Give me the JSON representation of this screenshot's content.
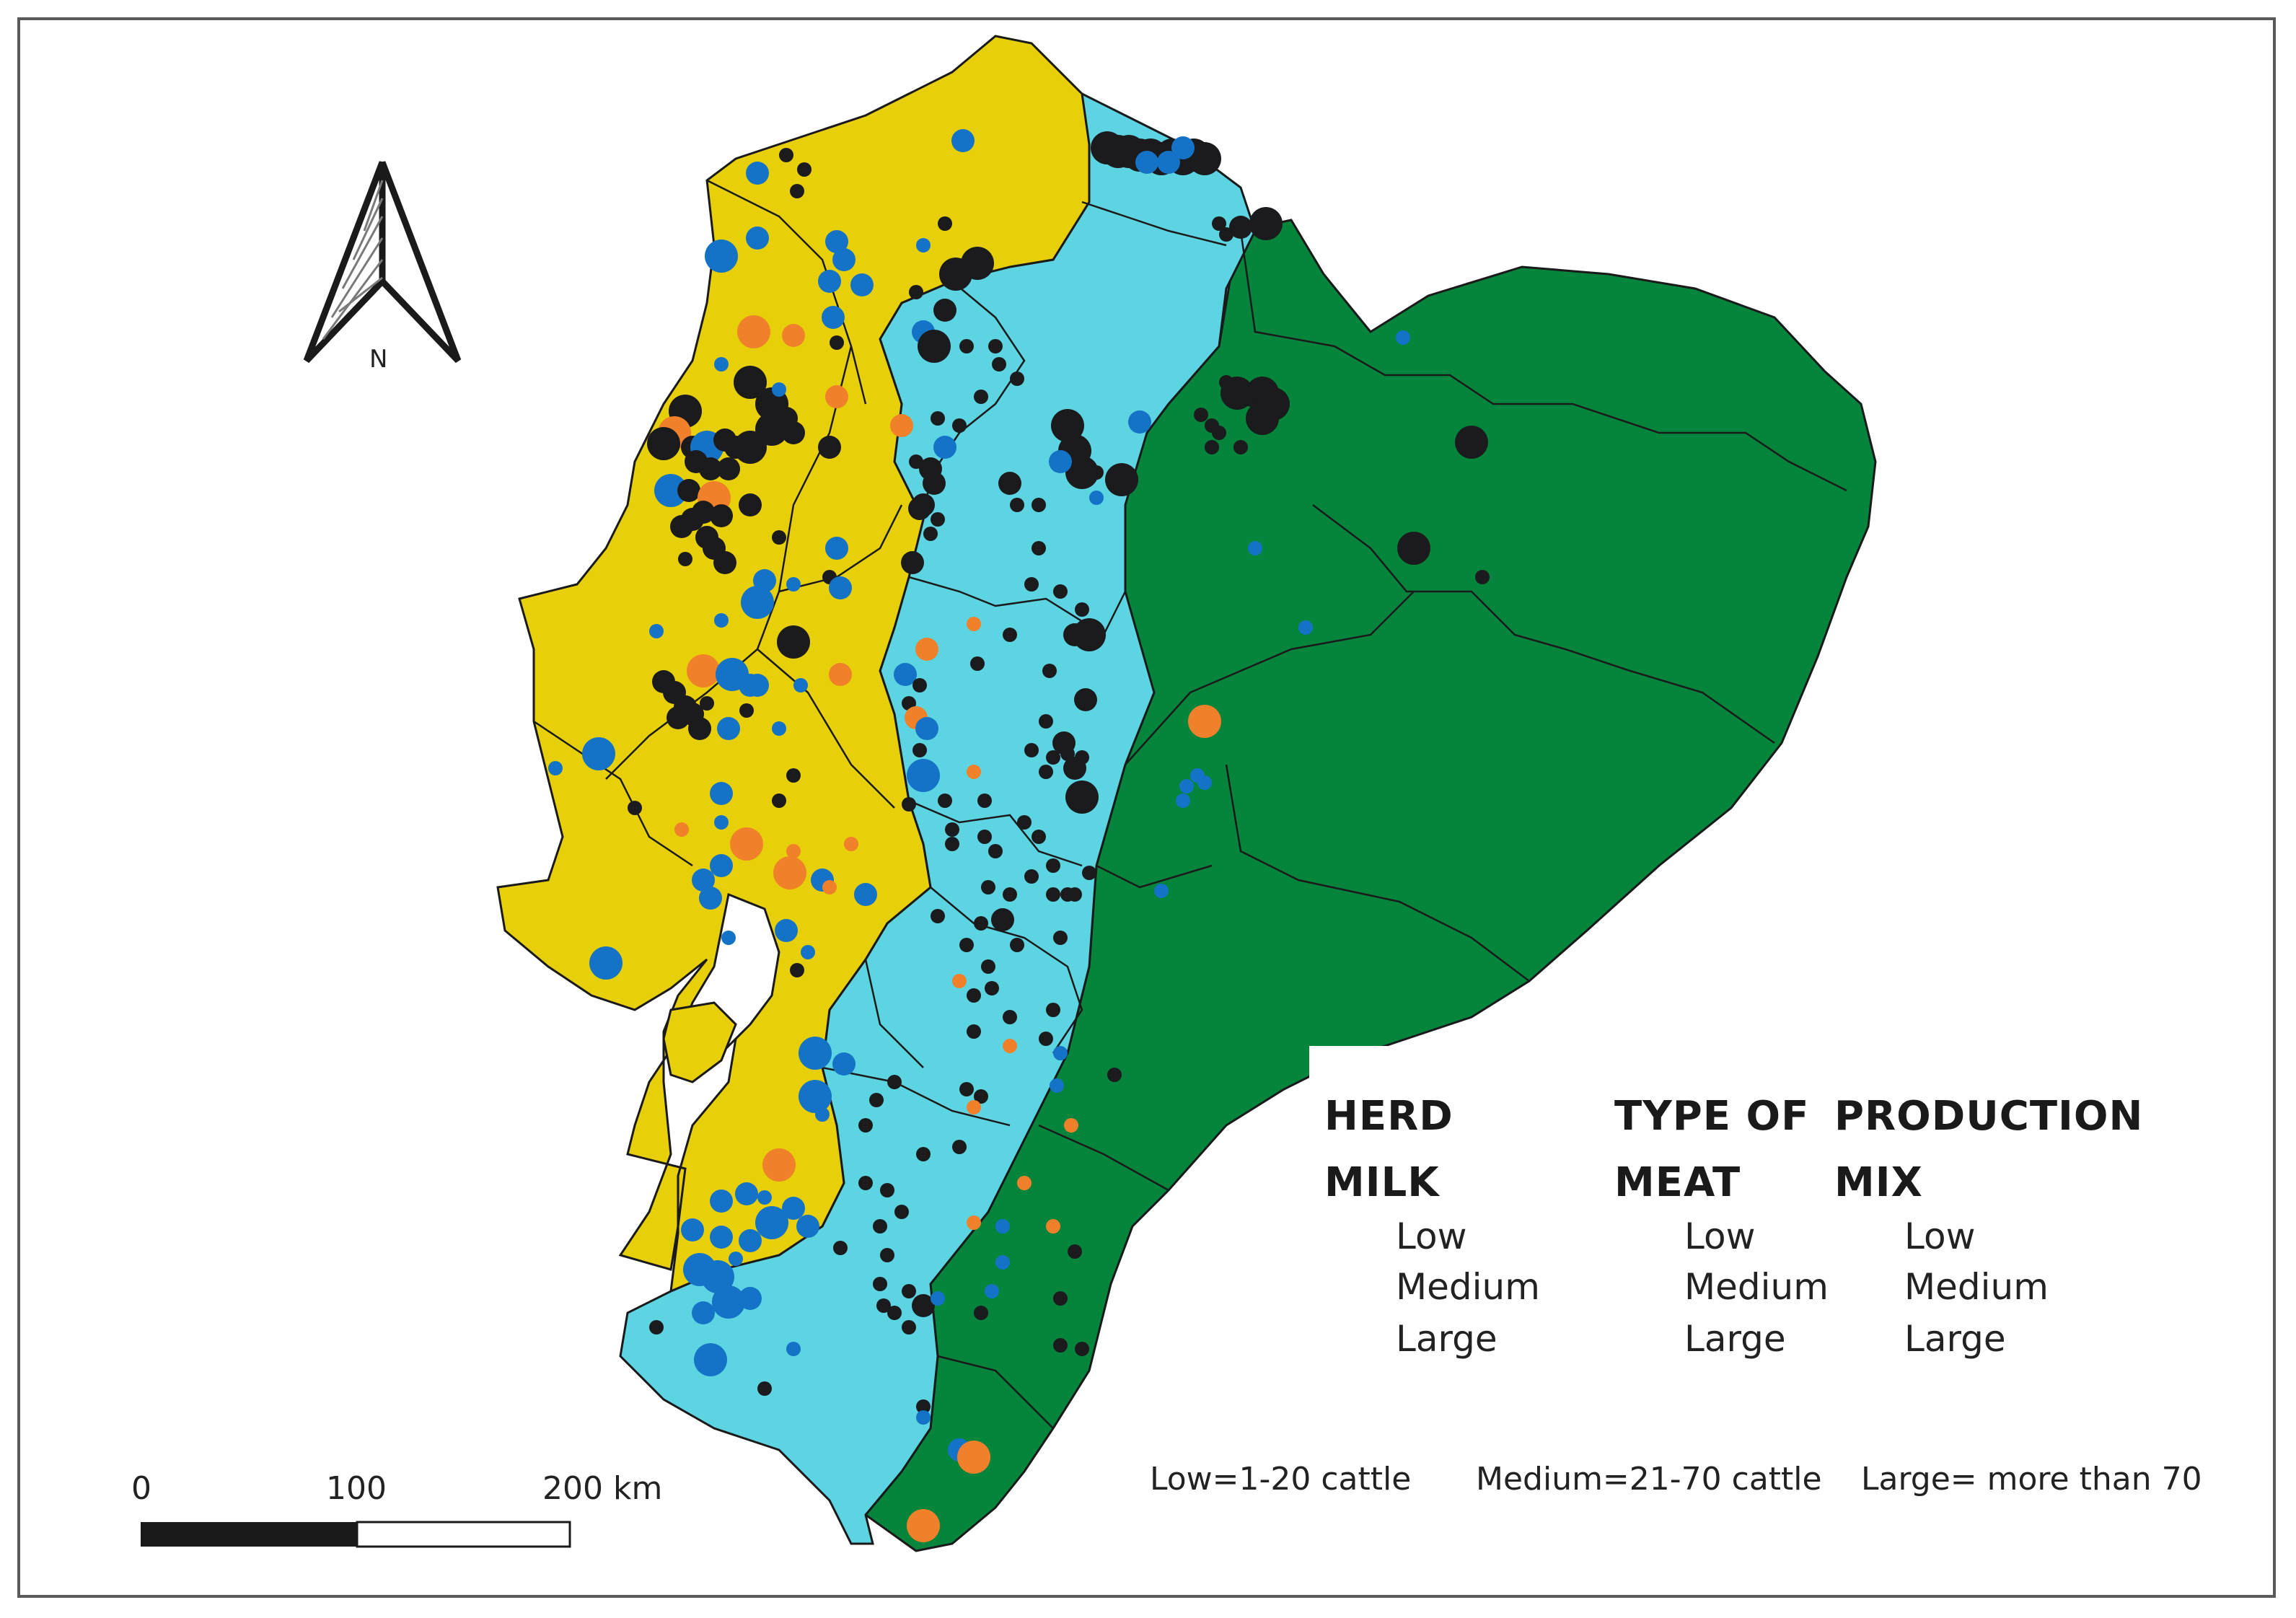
{
  "colors": {
    "coast": "#e7cf09",
    "highlands": "#5dd4e2",
    "amazon": "#05843c",
    "dot_milk": "#1b1b1e",
    "dot_meat": "#1473c7",
    "dot_mix": "#f0802a",
    "border": "#1a1a1a"
  },
  "north_arrow": {
    "icon": "north-arrow-icon",
    "label": "N"
  },
  "scale_bar": {
    "ticks": [
      "0",
      "100",
      "200 km"
    ]
  },
  "legend": {
    "columns": [
      {
        "heading_line1": "HERD",
        "heading_line2": "MILK",
        "color_key": "dot_milk",
        "items": [
          "Low",
          "Medium",
          "Large"
        ]
      },
      {
        "heading_line1": "TYPE OF",
        "heading_line2": "MEAT",
        "color_key": "dot_meat",
        "items": [
          "Low",
          "Medium",
          "Large"
        ]
      },
      {
        "heading_line1": "PRODUCTION",
        "heading_line2": "MIX",
        "color_key": "dot_mix",
        "items": [
          "Low",
          "Medium",
          "Large"
        ]
      }
    ],
    "notes": [
      "Low=1-20 cattle",
      "Medium=21-70 cattle",
      "Large= more than 70"
    ]
  }
}
